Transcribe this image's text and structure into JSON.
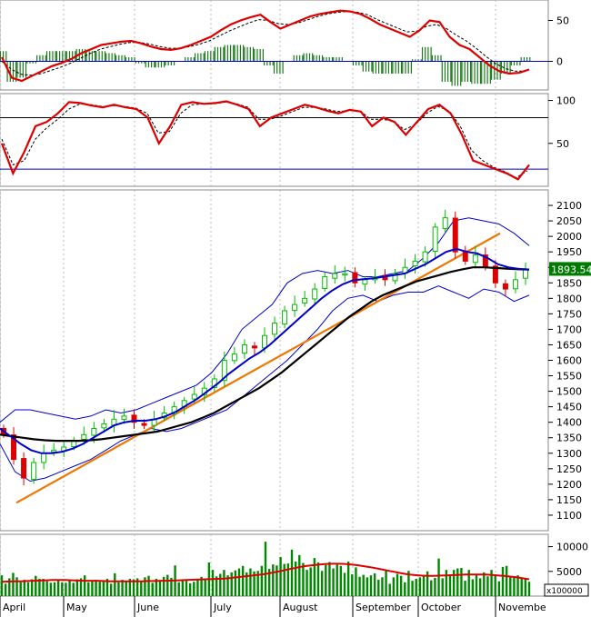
{
  "chart_data": [
    {
      "type": "line",
      "panel": "macd",
      "ylim": [
        -35,
        75
      ],
      "y_ticks": [
        50,
        0
      ],
      "x_months": [
        "April",
        "May",
        "June",
        "July",
        "August",
        "September",
        "October",
        "Novembe"
      ],
      "macd": [
        5,
        -20,
        -24,
        -18,
        -12,
        -6,
        -2,
        3,
        10,
        15,
        20,
        22,
        24,
        25,
        22,
        18,
        15,
        14,
        16,
        20,
        25,
        30,
        38,
        45,
        50,
        54,
        57,
        48,
        40,
        45,
        50,
        55,
        58,
        60,
        62,
        61,
        58,
        52,
        45,
        40,
        35,
        30,
        38,
        50,
        48,
        30,
        20,
        15,
        5,
        -5,
        -12,
        -15,
        -14,
        -10
      ],
      "signal": [
        0,
        -10,
        -16,
        -17,
        -15,
        -11,
        -7,
        -2,
        4,
        10,
        15,
        18,
        21,
        23,
        23,
        21,
        18,
        16,
        16,
        18,
        21,
        25,
        31,
        37,
        42,
        47,
        51,
        50,
        46,
        45,
        47,
        51,
        55,
        58,
        60,
        61,
        60,
        57,
        51,
        46,
        41,
        36,
        37,
        43,
        45,
        40,
        32,
        25,
        16,
        6,
        -3,
        -9,
        -12,
        -12
      ],
      "colors": {
        "macd": "#dd0000",
        "signal": "#000000",
        "hist": "#1a7a1a",
        "zero": "#0000cc"
      }
    },
    {
      "type": "line",
      "panel": "stochastic",
      "ylim": [
        0,
        108
      ],
      "y_ticks": [
        100,
        50
      ],
      "levels": [
        80,
        20
      ],
      "k": [
        50,
        15,
        40,
        70,
        75,
        85,
        98,
        97,
        94,
        92,
        95,
        92,
        90,
        80,
        50,
        70,
        95,
        98,
        96,
        97,
        99,
        95,
        90,
        70,
        80,
        85,
        90,
        95,
        92,
        88,
        85,
        89,
        87,
        70,
        80,
        75,
        60,
        75,
        90,
        95,
        85,
        60,
        30,
        25,
        20,
        15,
        8,
        25
      ],
      "d": [
        55,
        25,
        30,
        55,
        68,
        78,
        90,
        96,
        95,
        93,
        94,
        93,
        91,
        85,
        62,
        64,
        85,
        95,
        96,
        96,
        98,
        96,
        92,
        78,
        78,
        82,
        87,
        92,
        92,
        90,
        87,
        88,
        88,
        78,
        78,
        76,
        66,
        72,
        85,
        93,
        88,
        70,
        42,
        30,
        22,
        17,
        10,
        18
      ],
      "colors": {
        "k": "#dd0000",
        "d": "#000000",
        "levels_80": "#000000",
        "levels_20": "#0000cc"
      }
    },
    {
      "type": "candlestick",
      "panel": "price",
      "ylim": [
        1050,
        2150
      ],
      "y_ticks": [
        2100,
        2050,
        2000,
        1950,
        1900,
        1850,
        1800,
        1750,
        1700,
        1650,
        1600,
        1550,
        1500,
        1450,
        1400,
        1350,
        1300,
        1250,
        1200,
        1150,
        1100
      ],
      "last_value": "1893.54",
      "close": [
        1360,
        1280,
        1220,
        1270,
        1300,
        1310,
        1320,
        1340,
        1360,
        1380,
        1395,
        1410,
        1420,
        1400,
        1390,
        1410,
        1430,
        1450,
        1470,
        1490,
        1510,
        1540,
        1600,
        1620,
        1650,
        1640,
        1680,
        1720,
        1760,
        1780,
        1800,
        1830,
        1870,
        1880,
        1880,
        1850,
        1860,
        1870,
        1860,
        1880,
        1900,
        1920,
        1950,
        2030,
        2060,
        1950,
        1920,
        1940,
        1900,
        1850,
        1830,
        1860,
        1893.54
      ],
      "sma_short": [
        1380,
        1355,
        1330,
        1310,
        1300,
        1300,
        1305,
        1315,
        1330,
        1350,
        1370,
        1390,
        1400,
        1405,
        1405,
        1410,
        1420,
        1435,
        1455,
        1475,
        1500,
        1525,
        1555,
        1580,
        1605,
        1625,
        1650,
        1680,
        1710,
        1740,
        1770,
        1800,
        1825,
        1845,
        1858,
        1862,
        1865,
        1870,
        1875,
        1880,
        1895,
        1910,
        1930,
        1950,
        1960,
        1950,
        1945,
        1930,
        1910,
        1900,
        1895,
        1893
      ],
      "sma_long": [
        1360,
        1355,
        1350,
        1345,
        1342,
        1340,
        1340,
        1340,
        1342,
        1345,
        1350,
        1355,
        1360,
        1365,
        1370,
        1380,
        1390,
        1400,
        1415,
        1430,
        1450,
        1470,
        1490,
        1510,
        1535,
        1560,
        1590,
        1620,
        1650,
        1680,
        1710,
        1740,
        1765,
        1790,
        1810,
        1825,
        1840,
        1855,
        1865,
        1875,
        1885,
        1893,
        1900,
        1900,
        1898,
        1896,
        1894,
        1893
      ],
      "bb_upper": [
        1400,
        1440,
        1440,
        1430,
        1420,
        1410,
        1420,
        1440,
        1430,
        1440,
        1460,
        1480,
        1500,
        1520,
        1560,
        1620,
        1700,
        1740,
        1780,
        1850,
        1880,
        1890,
        1880,
        1890,
        1870,
        1870,
        1880,
        1890,
        1930,
        1980,
        2050,
        2060,
        2050,
        2040,
        2010,
        1970
      ],
      "bb_lower": [
        1330,
        1240,
        1210,
        1220,
        1240,
        1260,
        1280,
        1310,
        1340,
        1360,
        1380,
        1370,
        1380,
        1400,
        1420,
        1440,
        1480,
        1520,
        1560,
        1600,
        1650,
        1700,
        1760,
        1800,
        1810,
        1790,
        1810,
        1820,
        1820,
        1840,
        1820,
        1800,
        1830,
        1820,
        1790,
        1810
      ],
      "trendline": {
        "from": [
          0,
          1140
        ],
        "to": [
          1,
          2010
        ]
      },
      "colors": {
        "up": "#00bb00",
        "down": "#dd0000",
        "sma_short": "#0000cc",
        "sma_long": "#000000",
        "bands": "#0000cc",
        "trend": "#ee7700",
        "last_bg": "#007a00"
      }
    },
    {
      "type": "bar",
      "panel": "volume",
      "ylim": [
        0,
        12500
      ],
      "y_ticks": [
        10000,
        5000
      ],
      "unit_label": "x100000",
      "values": [
        4200,
        2500,
        3600,
        4700,
        3800,
        2800,
        3300,
        2800,
        3400,
        4100,
        3500,
        3500,
        3000,
        2700,
        2800,
        3100,
        2800,
        2700,
        3400,
        2700,
        3400,
        3600,
        4200,
        2800,
        3200,
        3300,
        2900,
        3100,
        3500,
        2500,
        4600,
        2800,
        3300,
        2900,
        3500,
        3400,
        3600,
        2900,
        3800,
        4100,
        2700,
        3500,
        3200,
        3900,
        4300,
        3700,
        6200,
        2800,
        3100,
        3100,
        2600,
        2900,
        3500,
        3900,
        3300,
        6800,
        5300,
        4000,
        4500,
        5300,
        4200,
        4800,
        5200,
        5600,
        6100,
        4800,
        5600,
        5000,
        5100,
        6100,
        11000,
        5500,
        6400,
        6200,
        7900,
        6500,
        6600,
        9400,
        7000,
        8300,
        6700,
        5300,
        5800,
        7700,
        6800,
        5100,
        6300,
        6900,
        5600,
        6400,
        6100,
        4700,
        7000,
        4400,
        5800,
        3900,
        4300,
        3800,
        4200,
        4600,
        3300,
        3800,
        5300,
        2500,
        3800,
        4500,
        4100,
        2800,
        5100,
        3100,
        3500,
        3800,
        4300,
        5000,
        3200,
        3700,
        7600,
        3600,
        5300,
        4400,
        5300,
        5600,
        5700,
        3100,
        5300,
        3400,
        4400,
        3600,
        4800,
        4000,
        5300,
        4400,
        3000,
        5900,
        6100,
        3800,
        3900,
        4200,
        3600,
        3600,
        2900
      ],
      "ma": [
        2900,
        2950,
        3000,
        3000,
        3050,
        3100,
        3150,
        3200,
        3250,
        3250,
        3250,
        3200,
        3150,
        3100,
        3100,
        3100,
        3050,
        3000,
        3000,
        3000,
        3000,
        3000,
        3000,
        3050,
        3050,
        3100,
        3100,
        3150,
        3200,
        3250,
        3300,
        3350,
        3400,
        3450,
        3500,
        3550,
        3650,
        3800,
        3950,
        4100,
        4250,
        4400,
        4600,
        4850,
        5100,
        5400,
        5650,
        5900,
        6100,
        6250,
        6400,
        6500,
        6550,
        6550,
        6500,
        6400,
        6250,
        6050,
        5850,
        5600,
        5350,
        5100,
        4850,
        4600,
        4400,
        4250,
        4150,
        4100,
        4100,
        4150,
        4200,
        4250,
        4300,
        4350,
        4350,
        4350,
        4350,
        4300,
        4200,
        4100,
        3950,
        3800,
        3600,
        3400
      ],
      "colors": {
        "bars": "#008800",
        "ma": "#dd0000"
      }
    }
  ]
}
